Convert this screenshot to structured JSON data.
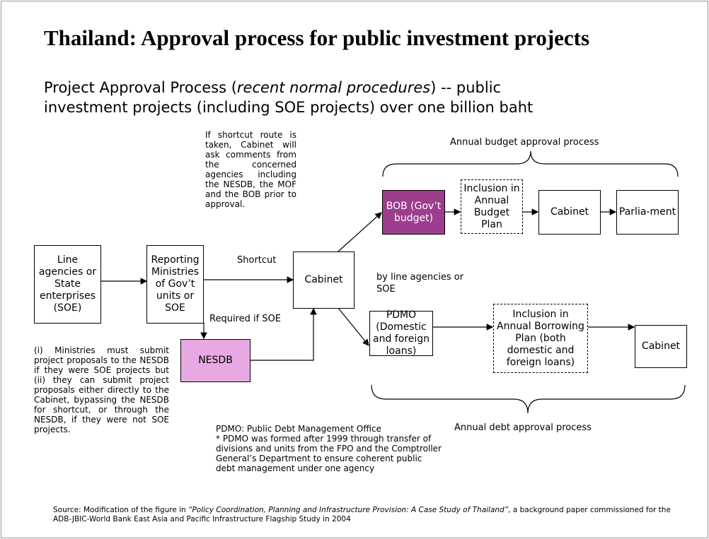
{
  "title": "Thailand: Approval process for public investment projects",
  "subtitle": {
    "before": "Project Approval Process (",
    "italic": "recent normal procedures",
    "after": ") -- public investment projects (including SOE projects) over one billion baht"
  },
  "nodes": [
    {
      "label": "Line agencies or State enterprises (SOE)"
    },
    {
      "label": "Reporting Ministries of Gov’t units or SOE"
    },
    {
      "label": "Cabinet"
    },
    {
      "label": "NESDB"
    },
    {
      "label": "BOB (Gov’t budget)"
    },
    {
      "label": "Inclusion in Annual Budget Plan"
    },
    {
      "label": "Cabinet"
    },
    {
      "label": "Parlia-ment"
    },
    {
      "label": "PDMO (Domestic and foreign loans)"
    },
    {
      "label": "Inclusion in Annual Borrowing Plan (both domestic and foreign loans)"
    },
    {
      "label": "Cabinet"
    }
  ],
  "edge_labels": {
    "shortcut": "Shortcut",
    "required": "Required if SOE",
    "by_line": "by line agencies or SOE"
  },
  "notes": {
    "shortcut": "If shortcut route is taken, Cabinet will ask comments from the concerned agencies including the NESDB, the MOF and the BOB prior to approval.",
    "ministries": "(i) Ministries must submit project proposals to the NESDB if they were SOE projects but (ii) they can submit project proposals either directly to the Cabinet, bypassing the NESDB for shortcut, or through the NESDB, if they were not SOE projects.",
    "pdmo": [
      "PDMO: Public Debt Management Office",
      "* PDMO was formed after 1999 through transfer of divisions and units from the FPO and the Comptroller General’s Department to ensure coherent public debt management under one agency"
    ]
  },
  "braces": {
    "budget": "Annual budget approval process",
    "debt": "Annual debt approval process"
  },
  "source": {
    "before": "Source:  Modification of the figure in ",
    "italic": "“Policy Coordination, Planning and Infrastructure Provision: A Case Study of Thailand”",
    "after": ", a background paper commissioned for the ADB-JBIC-World Bank East Asia and Pacific Infrastructure Flagship Study in 2004"
  }
}
